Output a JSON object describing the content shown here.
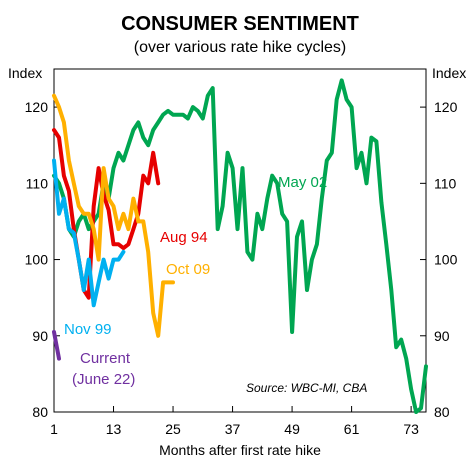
{
  "chart_data": {
    "type": "line",
    "title": "CONSUMER SENTIMENT",
    "subtitle": "(over various rate hike cycles)",
    "xlabel": "Months after first rate hike",
    "ylabel_left": "Index",
    "ylabel_right": "Index",
    "xlim": [
      1,
      76
    ],
    "ylim": [
      80,
      125
    ],
    "xticks": [
      1,
      13,
      25,
      37,
      49,
      61,
      73
    ],
    "yticks": [
      80,
      90,
      100,
      110,
      120
    ],
    "grid": false,
    "legend": "inline labels",
    "source": "Source: WBC-MI, CBA",
    "series": [
      {
        "name": "May 02",
        "color": "#00a651",
        "x": [
          1,
          2,
          3,
          4,
          5,
          6,
          7,
          8,
          9,
          10,
          11,
          12,
          13,
          14,
          15,
          16,
          17,
          18,
          19,
          20,
          21,
          22,
          23,
          24,
          25,
          26,
          27,
          28,
          29,
          30,
          31,
          32,
          33,
          34,
          35,
          36,
          37,
          38,
          39,
          40,
          41,
          42,
          43,
          44,
          45,
          46,
          47,
          48,
          49,
          50,
          51,
          52,
          53,
          54,
          55,
          56,
          57,
          58,
          59,
          60,
          61,
          62,
          63,
          64,
          65,
          66,
          67,
          68,
          69,
          70,
          71,
          72,
          73,
          74,
          75,
          76
        ],
        "values": [
          111,
          110,
          108,
          104,
          103,
          105,
          106,
          104,
          105,
          106,
          110,
          108,
          112,
          114,
          113,
          115,
          117,
          118,
          116,
          115,
          117,
          118,
          119,
          119.5,
          119,
          119,
          119,
          118.5,
          120,
          119.5,
          118.5,
          121.5,
          122.5,
          104,
          107,
          114,
          112,
          104,
          112,
          101,
          100,
          106,
          104,
          108,
          111,
          110,
          106,
          105,
          90.5,
          103,
          105,
          96,
          100,
          102,
          108,
          113,
          114,
          121,
          123.5,
          121,
          120,
          112,
          114,
          110,
          116,
          115.5,
          107.5,
          102,
          96,
          88.5,
          89.5,
          87,
          83,
          80,
          80.5,
          86
        ]
      },
      {
        "name": "Aug 94",
        "color": "#e60000",
        "x": [
          1,
          2,
          3,
          4,
          5,
          6,
          7,
          8,
          9,
          10,
          11,
          12,
          13,
          14,
          15,
          16,
          17,
          18,
          19,
          20,
          21,
          22
        ],
        "values": [
          117,
          116,
          111,
          109,
          104,
          100,
          96,
          95,
          107,
          112,
          108.5,
          106.5,
          102,
          102,
          101.5,
          102,
          104,
          106,
          111,
          110,
          114,
          110
        ]
      },
      {
        "name": "Oct 09",
        "color": "#ffb000",
        "x": [
          1,
          2,
          3,
          4,
          5,
          6,
          7,
          8,
          9,
          10,
          11,
          12,
          13,
          14,
          15,
          16,
          17,
          18,
          19,
          20,
          21,
          22,
          23,
          24,
          25
        ],
        "values": [
          121.5,
          120,
          118,
          113,
          110,
          107,
          106,
          106,
          104,
          100,
          112,
          108,
          107,
          104,
          106,
          104,
          108,
          105,
          105,
          101,
          93,
          90,
          97,
          97,
          97
        ]
      },
      {
        "name": "Nov 99",
        "color": "#00b0f0",
        "x": [
          1,
          2,
          3,
          4,
          5,
          6,
          7,
          8,
          9,
          10,
          11,
          12,
          13,
          14,
          15
        ],
        "values": [
          113,
          106,
          108,
          104,
          103.5,
          100,
          96,
          100,
          94,
          97,
          100,
          97.5,
          100,
          100,
          101
        ]
      },
      {
        "name": "Current (June 22)",
        "color": "#7030a0",
        "x": [
          1,
          2
        ],
        "values": [
          90.5,
          87
        ]
      }
    ],
    "labels": {
      "may02": "May 02",
      "aug94": "Aug 94",
      "oct09": "Oct 09",
      "nov99": "Nov 99",
      "current_line1": "Current",
      "current_line2": "(June 22)"
    }
  }
}
